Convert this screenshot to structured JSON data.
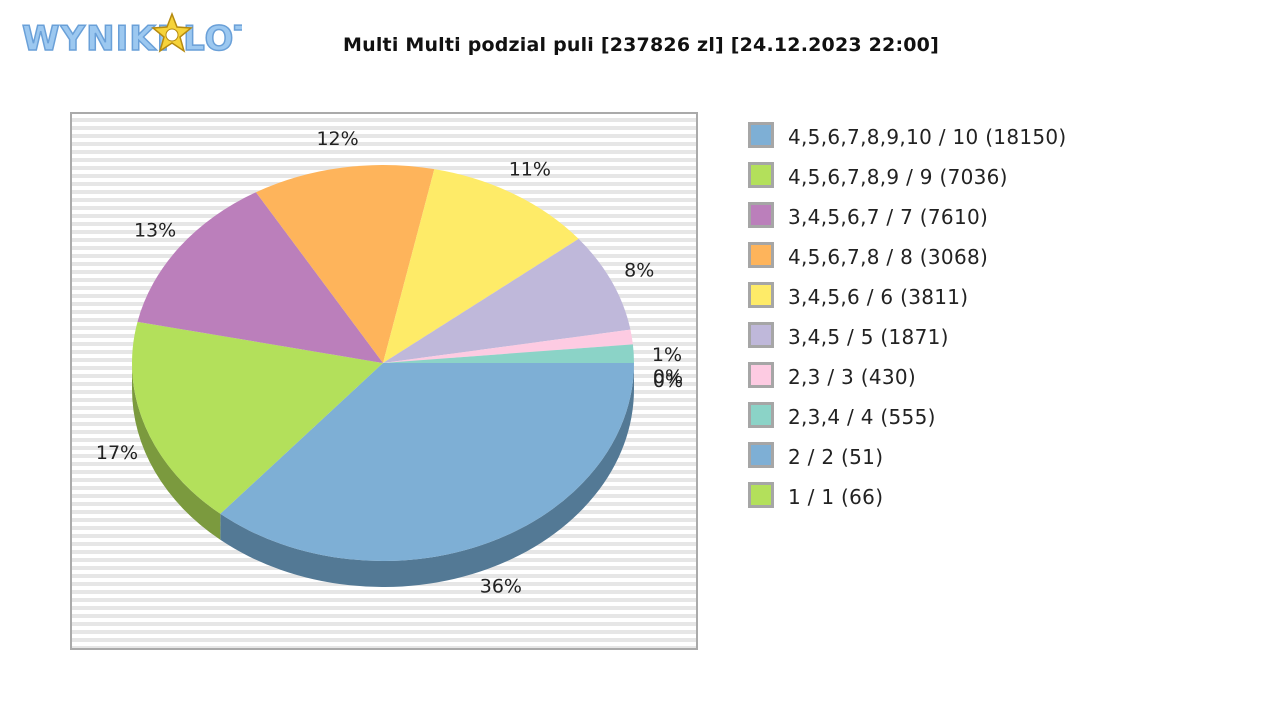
{
  "logo": {
    "text": "WYNIKI LOTTO",
    "star_text": "LOTTO"
  },
  "chart_data": {
    "type": "pie",
    "title": "Multi Multi podzial puli [237826 zl] [24.12.2023 22:00]",
    "legend_position": "right",
    "grid": true,
    "slices": [
      {
        "label": "4,5,6,7,8,9,10 / 10 (18150)",
        "value": 18150,
        "pct_label": "36%",
        "color": "#7eafd5",
        "shade": "#537995"
      },
      {
        "label": "4,5,6,7,8,9 / 9 (7036)",
        "value": 7036,
        "pct_label": "17%",
        "color": "#b3e05b",
        "shade": "#7b9a3e"
      },
      {
        "label": "3,4,5,6,7 / 7 (7610)",
        "value": 7610,
        "pct_label": "13%",
        "color": "#bb7fbb",
        "shade": "#825882"
      },
      {
        "label": "4,5,6,7,8 / 8 (3068)",
        "value": 3068,
        "pct_label": "12%",
        "color": "#feb45b",
        "shade": "#b07d3f"
      },
      {
        "label": "3,4,5,6 / 6 (3811)",
        "value": 3811,
        "pct_label": "11%",
        "color": "#feeb68",
        "shade": "#b0a348"
      },
      {
        "label": "3,4,5 / 5 (1871)",
        "value": 1871,
        "pct_label": "8%",
        "color": "#bfb8da",
        "shade": "#858097"
      },
      {
        "label": "2,3 / 3 (430)",
        "value": 430,
        "pct_label": "1%",
        "color": "#fdcbe2",
        "shade": "#b08d9d"
      },
      {
        "label": "2,3,4 / 4 (555)",
        "value": 555,
        "pct_label": "1%",
        "color": "#8bd3c7",
        "shade": "#61938a"
      },
      {
        "label": "2 / 2 (51)",
        "value": 51,
        "pct_label": "0%",
        "color": "#7eafd5",
        "shade": "#537995"
      },
      {
        "label": "1 / 1 (66)",
        "value": 66,
        "pct_label": "0%",
        "color": "#b3e05b",
        "shade": "#7b9a3e"
      }
    ],
    "pie_slices_drawn": [
      {
        "label": "4,5,6,7,8,9,10 / 10 (18150)",
        "pct_label": "36%",
        "start_angle": 0,
        "sweep": 130.4,
        "color": "#7eafd5",
        "shade": "#537995"
      },
      {
        "label": "4,5,6,7,8,9 / 9 (7036)",
        "pct_label": "17%",
        "start_angle": 130.4,
        "sweep": 61.6,
        "color": "#b3e05b",
        "shade": "#7b9a3e"
      },
      {
        "label": "3,4,5,6,7 / 7 (7610)",
        "pct_label": "13%",
        "start_angle": 192.0,
        "sweep": 47.6,
        "color": "#bb7fbb",
        "shade": "#825882"
      },
      {
        "label": "4,5,6,7,8 / 8 (3068)",
        "pct_label": "12%",
        "start_angle": 239.6,
        "sweep": 42.2,
        "color": "#feb45b",
        "shade": "#b07d3f"
      },
      {
        "label": "3,4,5,6 / 6 (3811)",
        "pct_label": "11%",
        "start_angle": 281.8,
        "sweep": 39.4,
        "color": "#feeb68",
        "shade": "#b0a348"
      },
      {
        "label": "3,4,5 / 5 (1871)",
        "pct_label": "8%",
        "start_angle": 321.2,
        "sweep": 29.1,
        "color": "#bfb8da",
        "shade": "#858097"
      },
      {
        "label": "2,3 / 3 (430)",
        "pct_label": "1%",
        "start_angle": 350.3,
        "sweep": 4.3,
        "color": "#fdcbe2",
        "shade": "#b08d9d"
      },
      {
        "label": "2,3,4 / 4 (555)",
        "pct_label": "1%",
        "start_angle": 354.6,
        "sweep": 5.4,
        "color": "#8bd3c7",
        "shade": "#61938a"
      }
    ],
    "tiny_labels": [
      "1%",
      "0%",
      "0%"
    ]
  }
}
